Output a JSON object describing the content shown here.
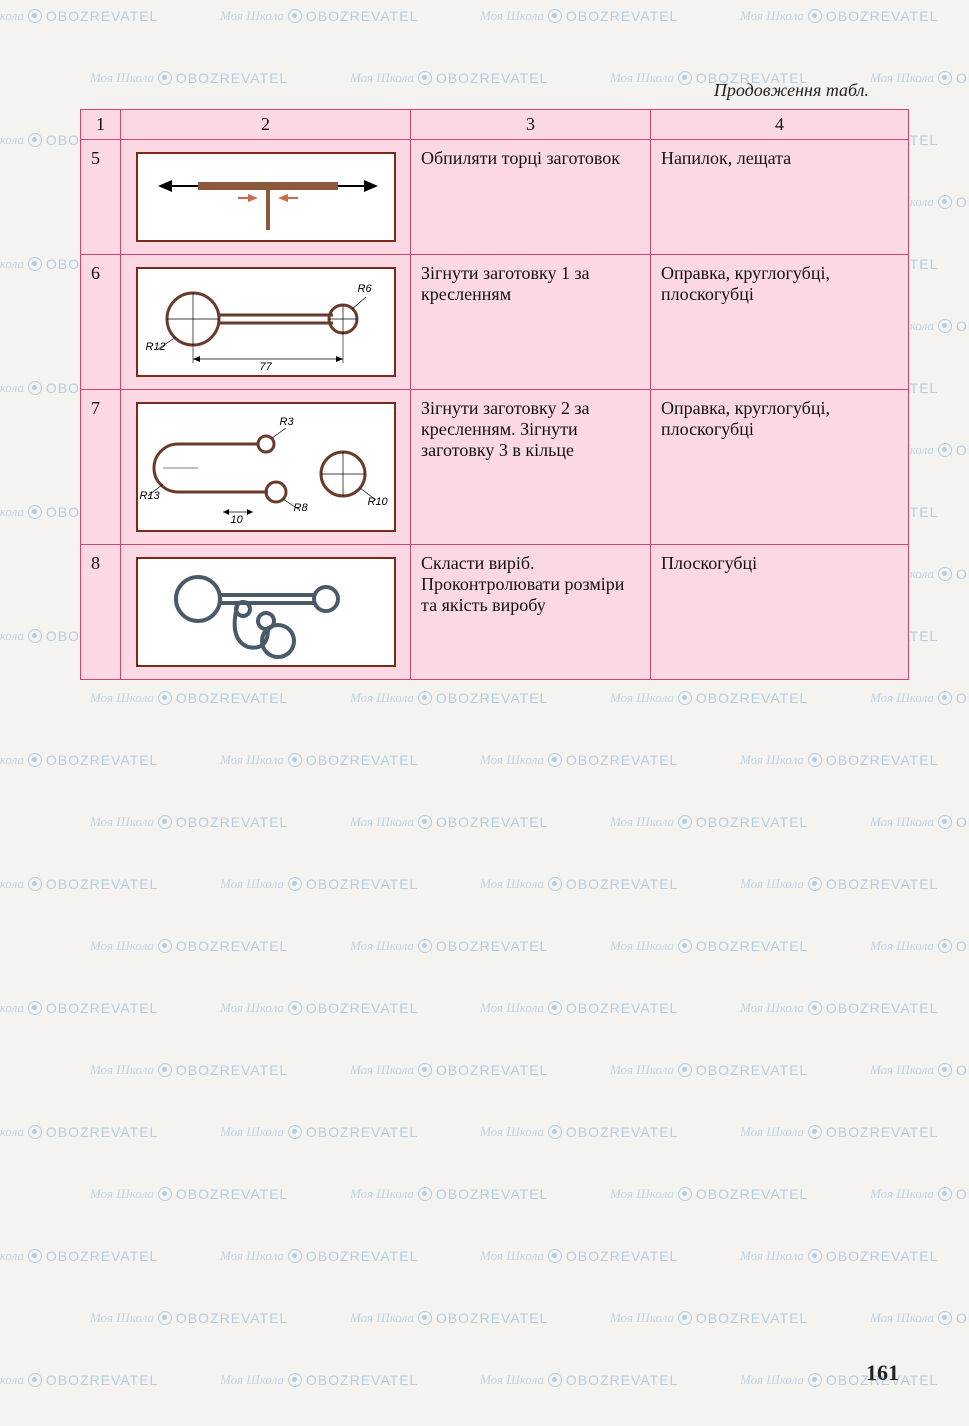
{
  "caption": "Продовження табл.",
  "page_number": "161",
  "watermark": {
    "script": "Моя Школа",
    "text": "OBOZREVATEL"
  },
  "table": {
    "header": [
      "1",
      "2",
      "3",
      "4"
    ],
    "rows": [
      {
        "num": "5",
        "diagram": {
          "type": "filing-ends",
          "colors": {
            "bar": "#8b5a3c",
            "arrow": "#000"
          }
        },
        "operation": "Обпиляти торці заготовок",
        "tools": "Напилок, лещата"
      },
      {
        "num": "6",
        "diagram": {
          "type": "bend-piece-1",
          "labels": {
            "R12": "R12",
            "R6": "R6",
            "len": "77"
          },
          "colors": {
            "line": "#6a3a2a"
          }
        },
        "operation": "Зігнути заготовку 1 за кресленням",
        "tools": "Оправка, круглогубці, плоскогубці"
      },
      {
        "num": "7",
        "diagram": {
          "type": "bend-piece-2-3",
          "labels": {
            "R13": "R13",
            "R3": "R3",
            "R8": "R8",
            "R10": "R10",
            "gap": "10"
          },
          "colors": {
            "line": "#6a3a2a"
          }
        },
        "operation": "Зігнути заготовку 2 за кресленням. Зігнути заготовку 3 в кільце",
        "tools": "Оправка, круглогубці, плоскогубці"
      },
      {
        "num": "8",
        "diagram": {
          "type": "assembly",
          "colors": {
            "line": "#4a5a6a"
          }
        },
        "operation": "Скласти виріб. Проконтролювати розміри та якість виробу",
        "tools": "Плоскогубці"
      }
    ]
  },
  "styling": {
    "table_bg": "#fbd8e3",
    "table_border": "#d4456b",
    "page_bg": "#f5f3f0",
    "diagram_border": "#7a2a1a",
    "watermark_color": "#3a8bc9",
    "body_font": "Georgia, serif",
    "caption_fontsize": 18,
    "cell_fontsize": 18
  }
}
